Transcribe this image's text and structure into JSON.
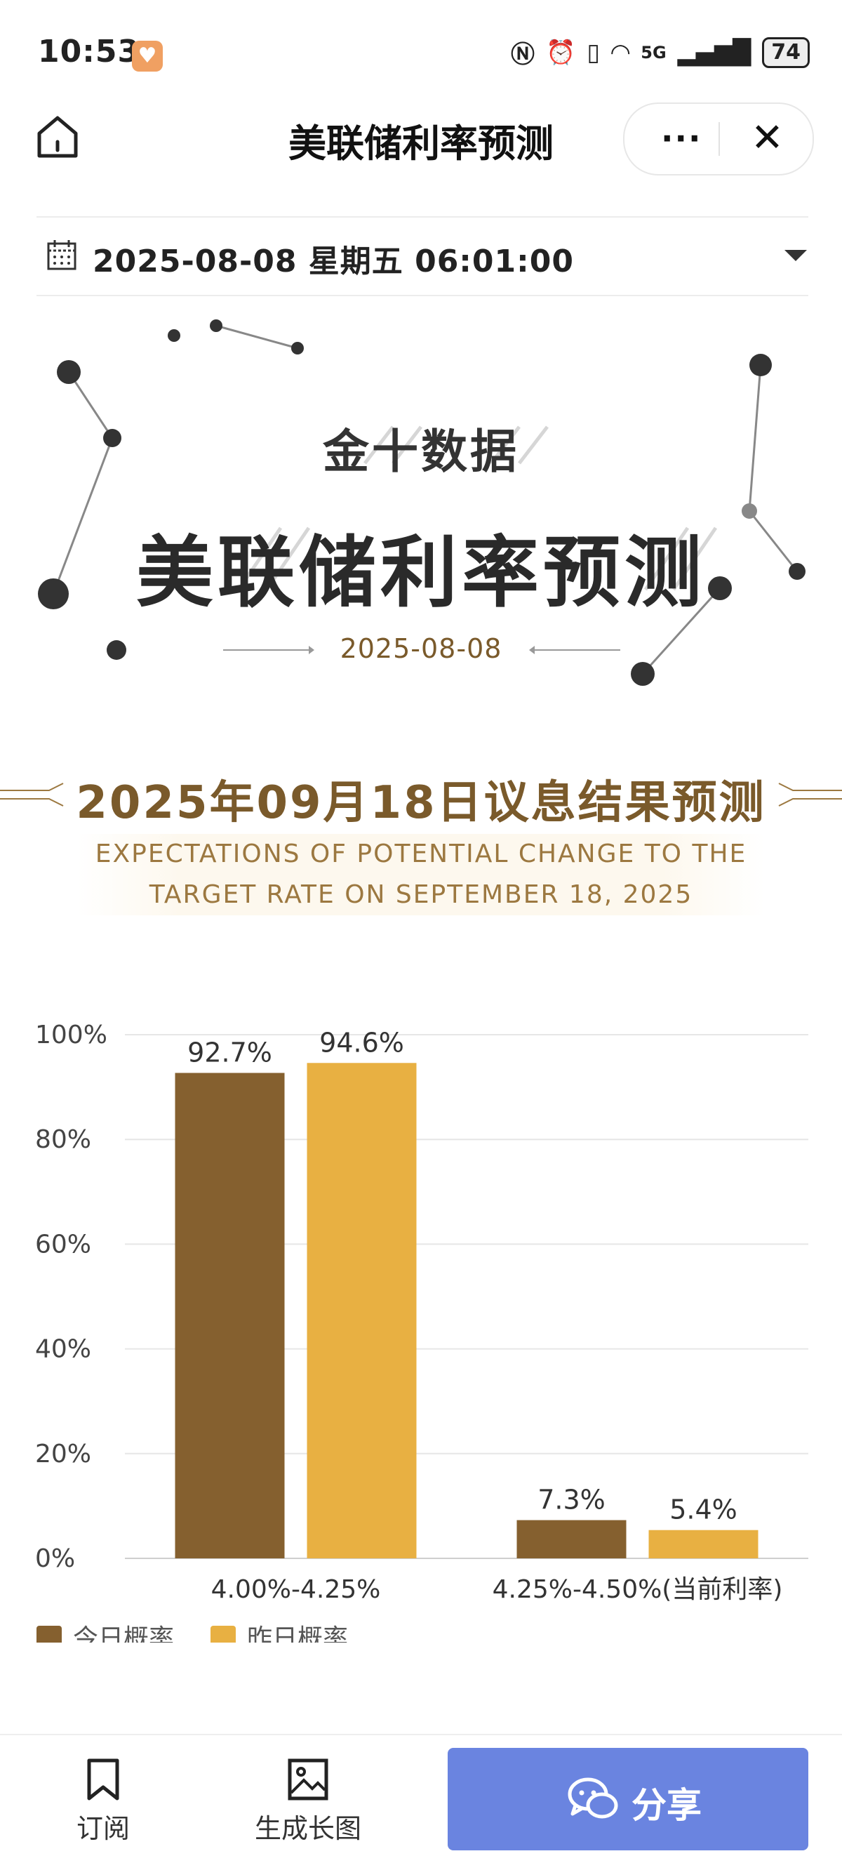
{
  "status_bar": {
    "time": "10:53",
    "network": "5G",
    "battery": "74"
  },
  "nav": {
    "title": "美联储利率预测",
    "more_label": "···",
    "close_label": "✕"
  },
  "date_selector": {
    "value": "2025-08-08 星期五 06:01:00"
  },
  "hero": {
    "brand": "金十数据",
    "title": "美联储利率预测",
    "date": "2025-08-08"
  },
  "section": {
    "title": "2025年09月18日议息结果预测",
    "subtitle_line1": "EXPECTATIONS OF POTENTIAL CHANGE TO THE",
    "subtitle_line2": "TARGET RATE ON SEPTEMBER 18, 2025"
  },
  "chart_data": {
    "type": "bar",
    "categories": [
      "4.00%-4.25%",
      "4.25%-4.50%(当前利率)"
    ],
    "series": [
      {
        "name": "今日概率",
        "values": [
          92.7,
          7.3
        ],
        "color": "#85602f"
      },
      {
        "name": "昨日概率",
        "values": [
          94.6,
          5.4
        ],
        "color": "#e8b042"
      }
    ],
    "value_labels": [
      [
        "92.7%",
        "7.3%"
      ],
      [
        "94.6%",
        "5.4%"
      ]
    ],
    "y_ticks": [
      "0%",
      "20%",
      "40%",
      "60%",
      "80%",
      "100%"
    ],
    "ylim": [
      0,
      100
    ],
    "grid": true,
    "legend_position": "bottom-left"
  },
  "bottom_bar": {
    "subscribe_label": "订阅",
    "long_image_label": "生成长图",
    "share_label": "分享"
  },
  "colors": {
    "accent_brown": "#7a5a2b",
    "share_blue": "#6a84e0"
  }
}
